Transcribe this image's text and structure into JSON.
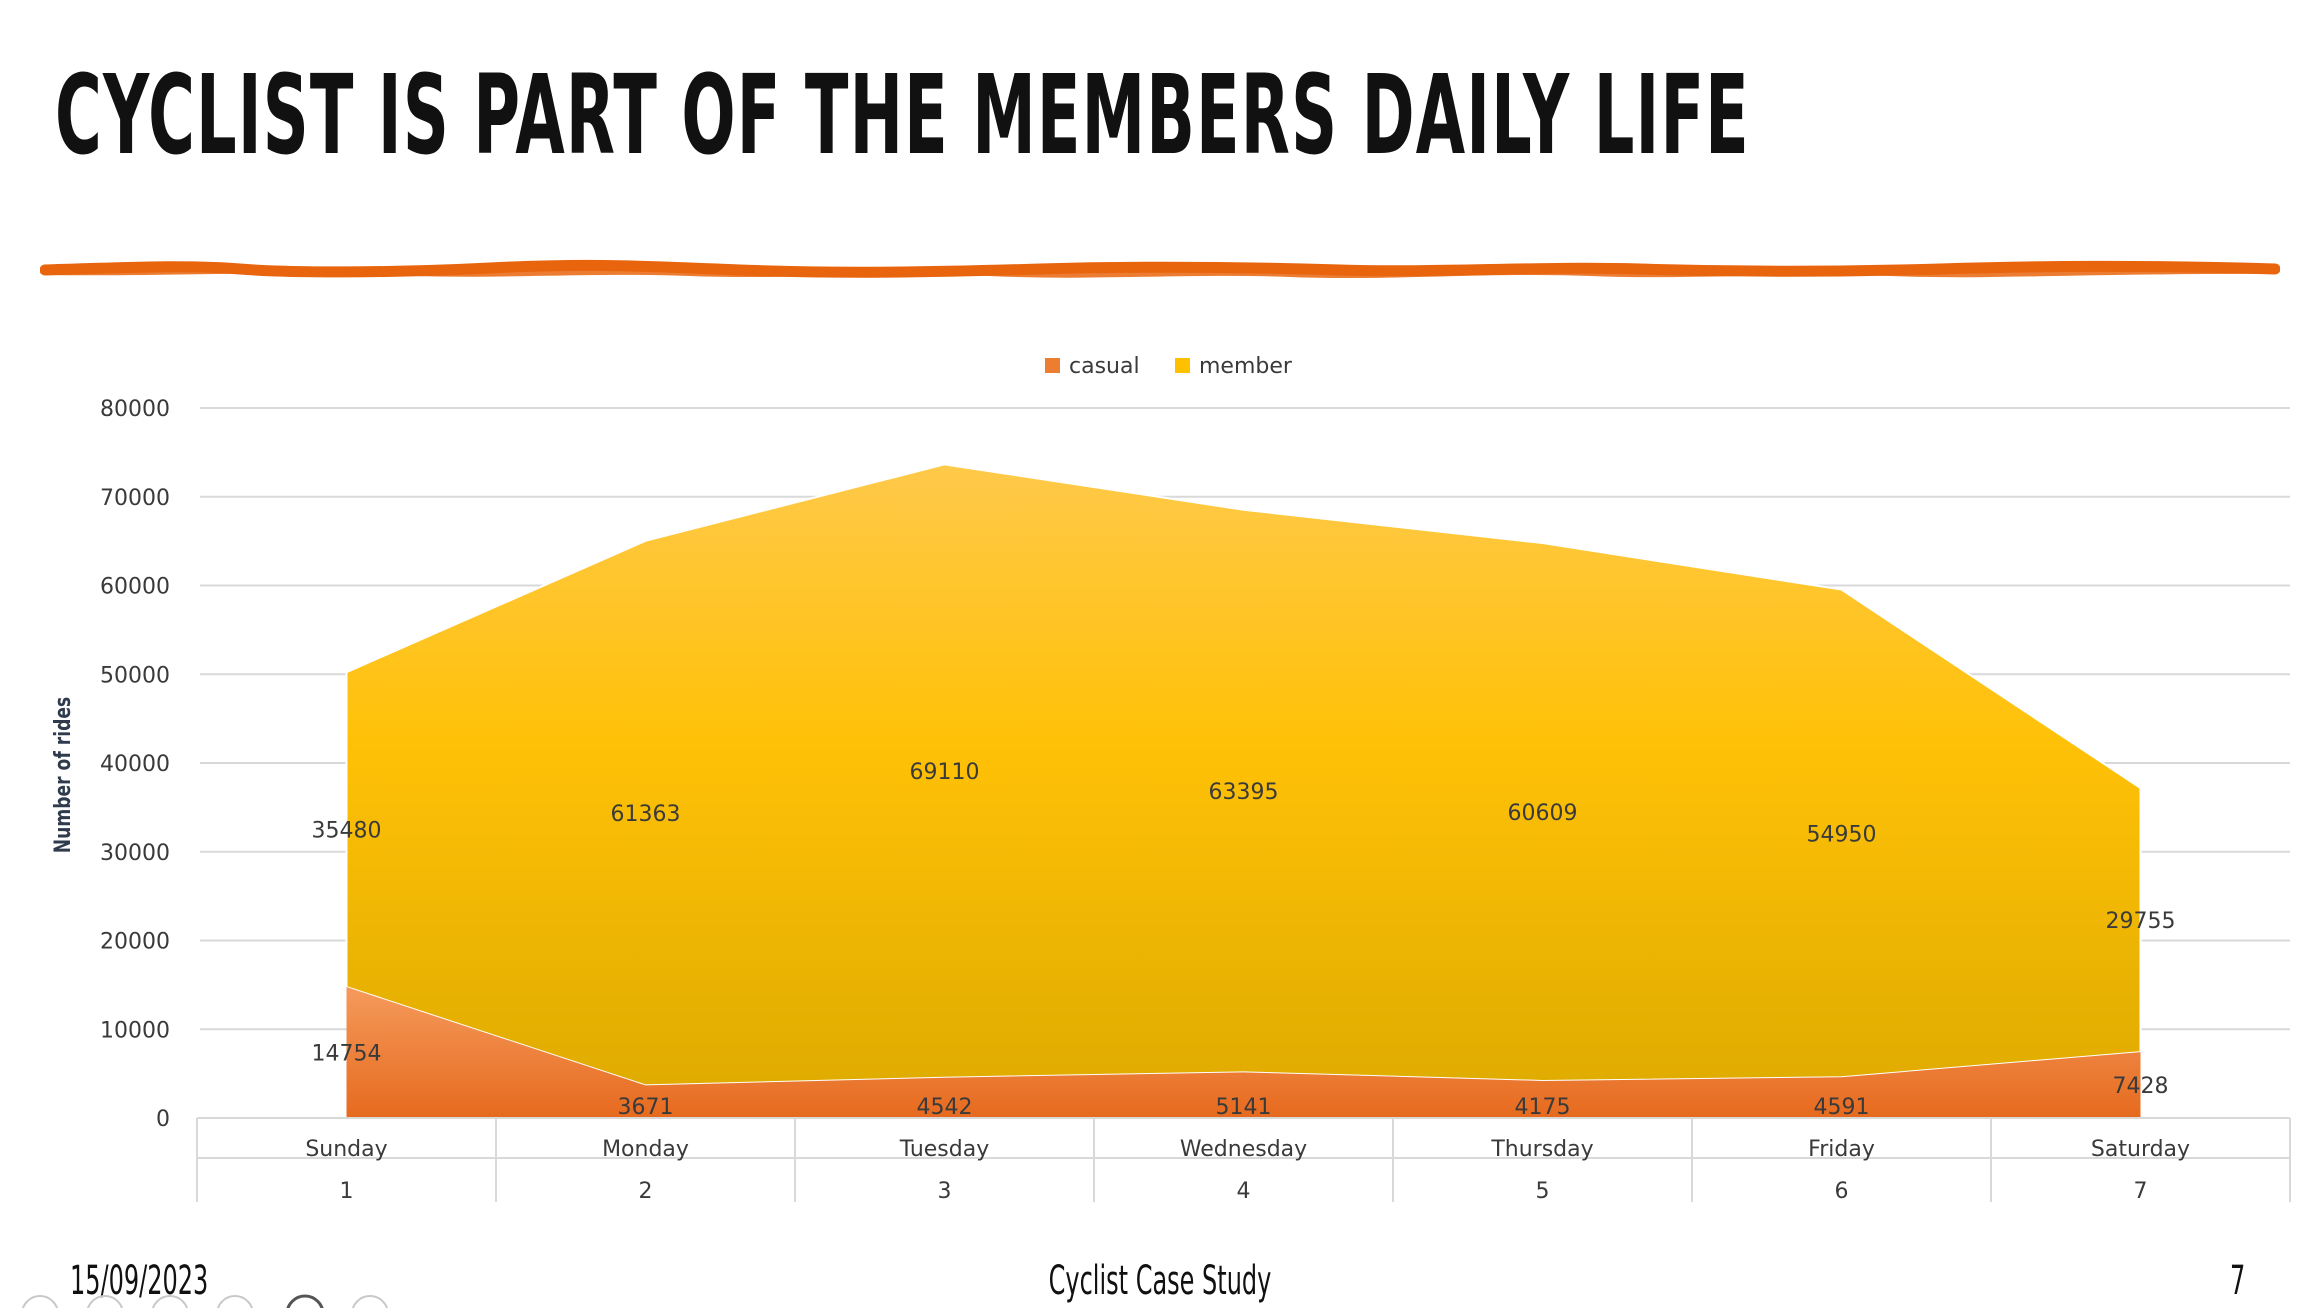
{
  "slide": {
    "title": "CYCLIST IS PART OF THE MEMBERS DAILY LIFE",
    "footer_date": "15/09/2023",
    "footer_center": "Cyclist Case Study",
    "page_number": "7",
    "accent_color": "#E8650E"
  },
  "chart_data": {
    "type": "area",
    "stacked": true,
    "title": "",
    "xlabel": "",
    "ylabel": "Number of rides",
    "ylim": [
      0,
      80000
    ],
    "yticks": [
      0,
      10000,
      20000,
      30000,
      40000,
      50000,
      60000,
      70000,
      80000
    ],
    "grid": true,
    "legend_position": "top",
    "categories": [
      "Sunday",
      "Monday",
      "Tuesday",
      "Wednesday",
      "Thursday",
      "Friday",
      "Saturday"
    ],
    "category_numbers": [
      "1",
      "2",
      "3",
      "4",
      "5",
      "6",
      "7"
    ],
    "series": [
      {
        "name": "casual",
        "color": "#ED7D31",
        "values": [
          14754,
          3671,
          4542,
          5141,
          4175,
          4591,
          7428
        ]
      },
      {
        "name": "member",
        "color": "#FFC000",
        "values": [
          35480,
          61363,
          69110,
          63395,
          60609,
          54950,
          29755
        ]
      }
    ]
  }
}
